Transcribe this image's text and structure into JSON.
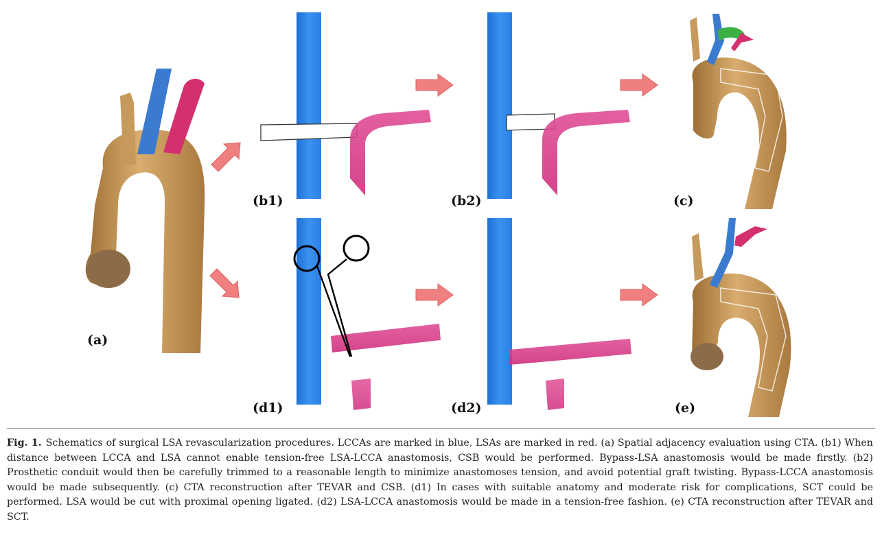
{
  "panels": {
    "a": "(a)",
    "b1": "(b1)",
    "b2": "(b2)",
    "c": "(c)",
    "d1": "(d1)",
    "d2": "(d2)",
    "e": "(e)"
  },
  "caption": {
    "figure_number": "Fig. 1.",
    "text": "Schematics of surgical LSA revascularization procedures. LCCAs are marked in blue, LSAs are marked in red. (a) Spatial adjacency evaluation using CTA. (b1) When distance between LCCA and LSA cannot enable tension-free LSA-LCCA anastomosis, CSB would be performed. Bypass-LSA anastomosis would be made firstly. (b2) Prosthetic conduit would then be carefully trimmed to a reasonable length to minimize anastomoses tension, and avoid potential graft twisting. Bypass-LCCA anastomosis would be made subsequently. (c) CTA reconstruction after TEVAR and CSB. (d1) In cases with suitable anatomy and moderate risk for complications, SCT could be performed. LSA would be cut with proximal opening ligated. (d2) LSA-LCCA anastomosis would be made in a tension-free fashion. (e) CTA reconstruction after TEVAR and SCT."
  },
  "colors": {
    "lcca_blue": "#2f86e8",
    "lsa_pink": "#d93a8a",
    "aorta_tan": "#c99a5a",
    "arrow_fill": "#f08080",
    "graft_green": "#3cb043"
  }
}
